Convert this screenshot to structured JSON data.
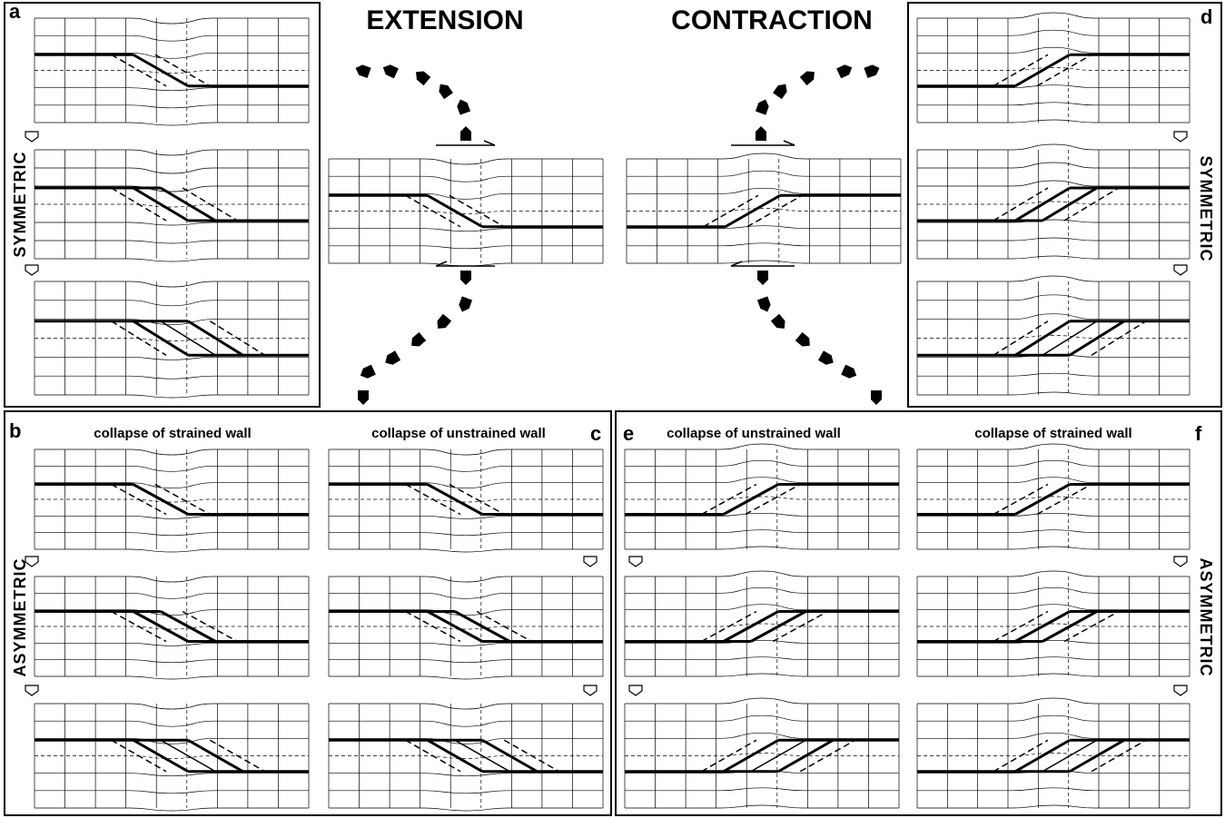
{
  "title_left": "EXTENSION",
  "title_right": "CONTRACTION",
  "panels": {
    "a": {
      "label": "a",
      "side": "SYMMETRIC"
    },
    "b": {
      "label": "b",
      "caption": "collapse of strained wall",
      "side": "ASYMMETRIC"
    },
    "c": {
      "label": "c",
      "caption": "collapse of unstrained wall"
    },
    "d": {
      "label": "d",
      "side": "SYMMETRIC"
    },
    "e": {
      "label": "e",
      "caption": "collapse of unstrained wall"
    },
    "f": {
      "label": "f",
      "caption": "collapse of strained wall",
      "side": "ASYMMETRIC"
    }
  }
}
